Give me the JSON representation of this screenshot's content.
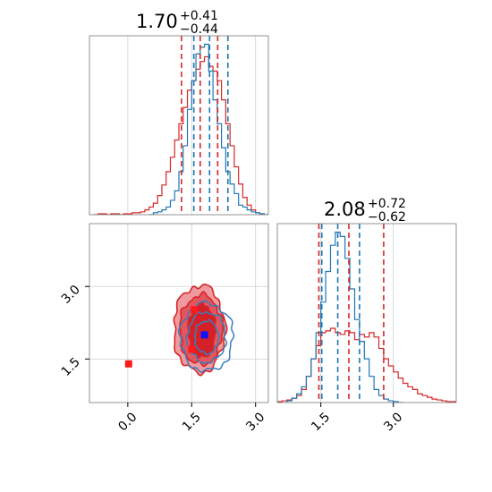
{
  "chart_data": [
    {
      "panel": "marginal-param1",
      "type": "histogram",
      "title": {
        "median": "1.70",
        "plus": "+0.41",
        "minus": "−0.44"
      },
      "xlim": [
        -0.9,
        3.3
      ],
      "grid": true,
      "series": [
        {
          "color": "#d62728",
          "bin_edges": [
            -0.8,
            -0.7,
            -0.6,
            -0.5,
            -0.4,
            -0.3,
            -0.2,
            -0.1,
            0.0,
            0.1,
            0.2,
            0.3,
            0.4,
            0.5,
            0.6,
            0.7,
            0.8,
            0.9,
            1.0,
            1.1,
            1.2,
            1.3,
            1.4,
            1.5,
            1.6,
            1.7,
            1.8,
            1.9,
            2.0,
            2.1,
            2.2,
            2.3,
            2.4,
            2.5,
            2.6,
            2.7,
            2.8,
            2.9,
            3.0,
            3.1,
            3.2
          ],
          "counts": [
            0,
            1,
            1,
            0,
            1,
            1,
            0,
            1,
            1,
            2,
            2,
            3,
            5,
            8,
            12,
            20,
            31,
            45,
            60,
            78,
            95,
            112,
            130,
            140,
            152,
            160,
            165,
            155,
            150,
            140,
            120,
            95,
            72,
            50,
            32,
            18,
            10,
            5,
            2,
            1
          ],
          "quantiles": [
            1.26,
            1.7,
            2.11
          ]
        },
        {
          "color": "#1f77b4",
          "bin_edges": [
            0.5,
            0.6,
            0.7,
            0.8,
            0.9,
            1.0,
            1.1,
            1.2,
            1.3,
            1.4,
            1.5,
            1.6,
            1.7,
            1.8,
            1.9,
            2.0,
            2.1,
            2.2,
            2.3,
            2.4,
            2.5,
            2.6,
            2.7,
            2.8,
            2.9,
            3.0,
            3.1,
            3.2,
            3.3
          ],
          "counts": [
            0,
            2,
            3,
            5,
            8,
            15,
            25,
            45,
            72,
            110,
            140,
            168,
            175,
            178,
            150,
            120,
            95,
            70,
            45,
            32,
            22,
            10,
            8,
            5,
            3,
            2,
            1,
            0
          ],
          "quantiles": [
            1.55,
            1.92,
            2.35
          ]
        }
      ]
    },
    {
      "panel": "marginal-param2",
      "type": "histogram",
      "title": {
        "median": "2.08",
        "plus": "+0.72",
        "minus": "−0.62"
      },
      "xlim": [
        0.6,
        4.3
      ],
      "xticks": [
        1.5,
        3.0
      ],
      "xtick_labels": [
        "1.5",
        "3.0"
      ],
      "grid": true,
      "series": [
        {
          "color": "#d62728",
          "bin_edges": [
            0.6,
            0.7,
            0.8,
            0.9,
            1.0,
            1.1,
            1.2,
            1.3,
            1.4,
            1.5,
            1.6,
            1.7,
            1.8,
            1.9,
            2.0,
            2.1,
            2.2,
            2.3,
            2.4,
            2.5,
            2.6,
            2.7,
            2.8,
            2.9,
            3.0,
            3.1,
            3.2,
            3.3,
            3.4,
            3.5,
            3.6,
            3.7,
            3.8,
            3.9,
            4.0,
            4.1,
            4.2,
            4.3
          ],
          "counts": [
            1,
            2,
            3,
            5,
            8,
            15,
            30,
            50,
            65,
            80,
            82,
            85,
            80,
            78,
            82,
            80,
            72,
            78,
            75,
            80,
            75,
            62,
            50,
            42,
            35,
            28,
            22,
            18,
            15,
            10,
            8,
            6,
            4,
            3,
            2,
            1,
            1
          ],
          "quantiles": [
            1.46,
            2.08,
            2.8
          ]
        },
        {
          "color": "#1f77b4",
          "bin_edges": [
            0.8,
            0.9,
            1.0,
            1.1,
            1.2,
            1.3,
            1.4,
            1.5,
            1.6,
            1.7,
            1.8,
            1.9,
            2.0,
            2.1,
            2.2,
            2.3,
            2.4,
            2.5,
            2.6,
            2.7,
            2.8,
            2.9,
            3.0,
            3.1,
            3.2
          ],
          "counts": [
            2,
            5,
            10,
            18,
            30,
            50,
            80,
            115,
            150,
            180,
            195,
            190,
            165,
            130,
            95,
            70,
            50,
            30,
            15,
            8,
            4,
            2,
            1,
            0
          ],
          "quantiles": [
            1.52,
            1.85,
            2.3
          ]
        }
      ]
    },
    {
      "panel": "joint",
      "type": "contour",
      "xlim": [
        -0.9,
        3.3
      ],
      "ylim": [
        0.6,
        4.3
      ],
      "xticks": [
        0.0,
        1.5,
        3.0
      ],
      "xtick_labels": [
        "0.0",
        "1.5",
        "3.0"
      ],
      "yticks": [
        1.5,
        3.0
      ],
      "ytick_labels": [
        "1.5",
        "3.0"
      ],
      "grid": true,
      "red_contours": [
        {
          "center": [
            1.68,
            2.12
          ],
          "radius": [
            0.6,
            0.9
          ],
          "fill": "#ef9a9f"
        },
        {
          "center": [
            1.72,
            2.1
          ],
          "radius": [
            0.5,
            0.72
          ],
          "fill": "#e2565e"
        },
        {
          "center": [
            1.74,
            2.08
          ],
          "radius": [
            0.32,
            0.55
          ],
          "fill": "#d62027"
        }
      ],
      "blue_contours": [
        {
          "center": [
            1.85,
            1.95
          ],
          "radius": [
            0.62,
            0.7
          ]
        },
        {
          "center": [
            1.85,
            1.95
          ],
          "radius": [
            0.45,
            0.52
          ]
        },
        {
          "center": [
            1.85,
            1.95
          ],
          "radius": [
            0.28,
            0.34
          ]
        }
      ],
      "red_markers": [
        [
          0.02,
          1.4
        ],
        [
          1.56,
          2.52
        ],
        [
          1.5,
          1.7
        ]
      ],
      "blue_markers": [
        [
          1.8,
          2.0
        ]
      ]
    }
  ]
}
